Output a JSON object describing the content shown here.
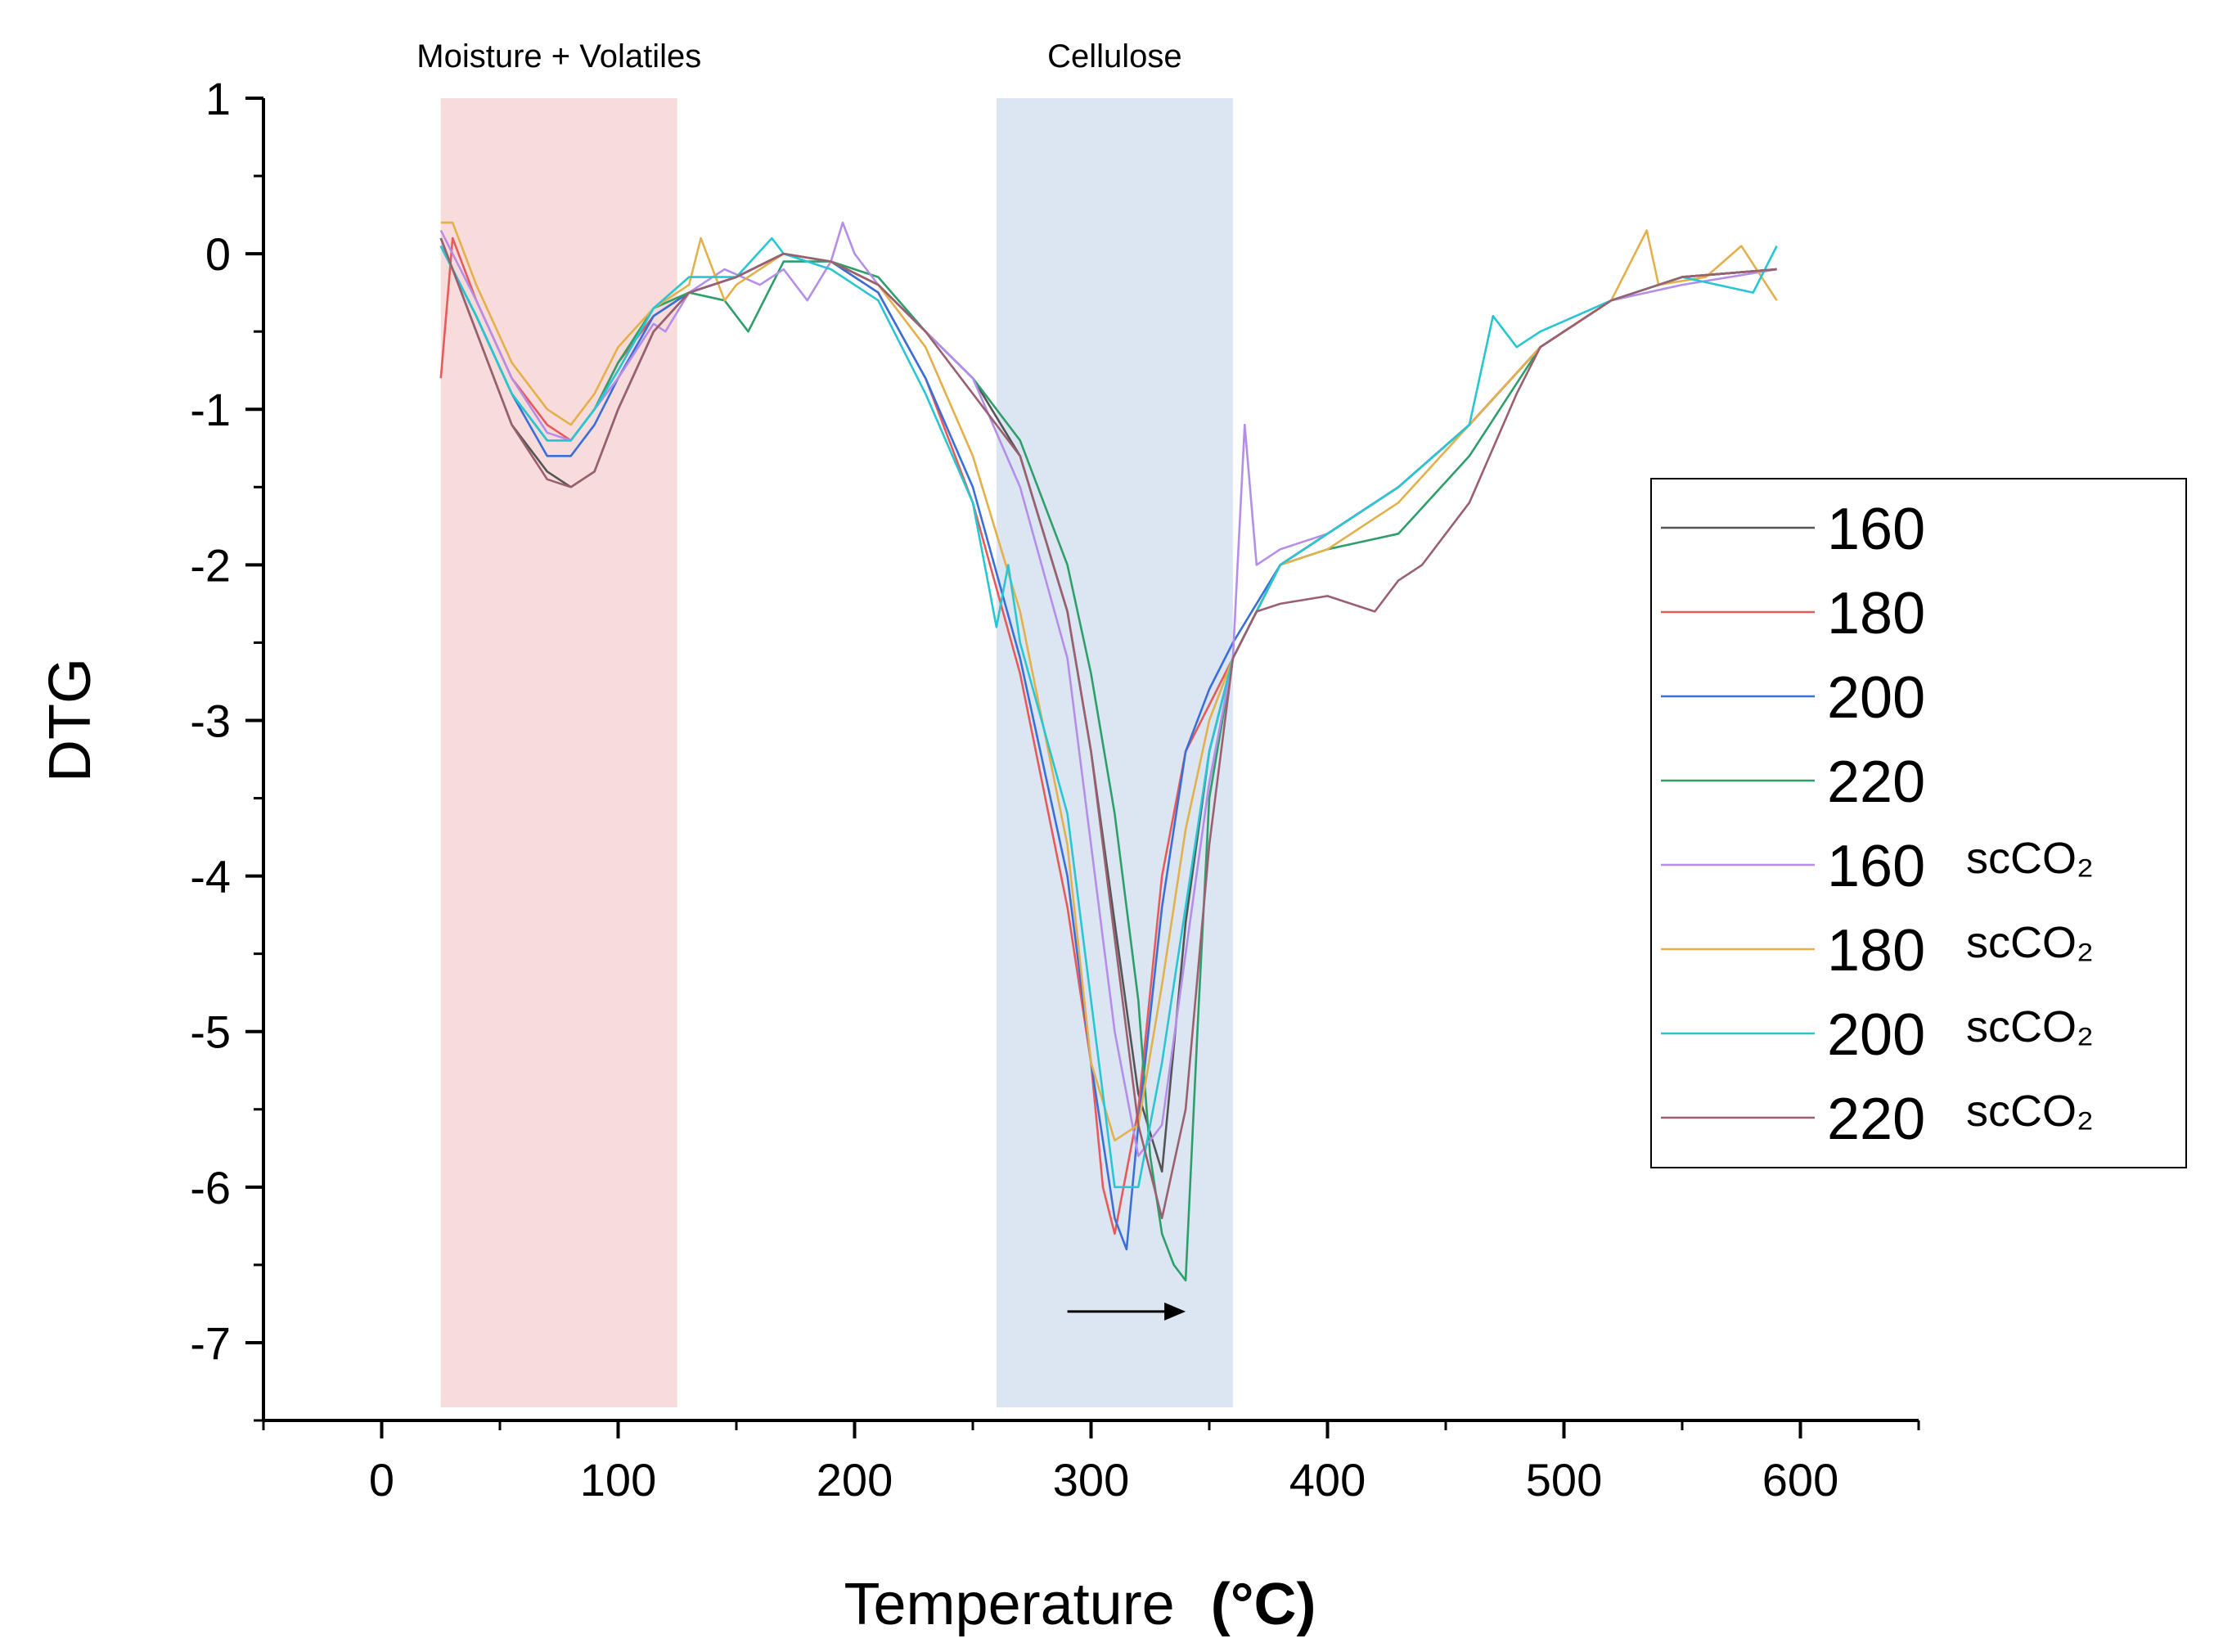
{
  "chart_data": {
    "type": "line",
    "title": "",
    "xlabel": "Temperature",
    "xlabel_unit": "(°C)",
    "ylabel": "DTG",
    "xlim": [
      -50,
      650
    ],
    "ylim": [
      -7.5,
      1
    ],
    "xticks": [
      0,
      100,
      200,
      300,
      400,
      500,
      600
    ],
    "yticks": [
      1,
      0,
      -1,
      -2,
      -3,
      -4,
      -5,
      -6,
      -7
    ],
    "grid": false,
    "legend_position": "right",
    "regions": [
      {
        "label": "Moisture + Volatiles",
        "x0": 25,
        "x1": 125,
        "color": "#f8dcdc"
      },
      {
        "label": "Cellulose",
        "x0": 260,
        "x1": 360,
        "color": "#dce6f2"
      }
    ],
    "annotation": {
      "type": "arrow",
      "from": [
        290,
        -6.8
      ],
      "to": [
        340,
        -6.8
      ],
      "meaning": "peak shift to higher temperature"
    },
    "series": [
      {
        "name": "160",
        "suffix": "",
        "color": "#555555",
        "x": [
          25,
          40,
          55,
          70,
          80,
          90,
          100,
          115,
          130,
          150,
          170,
          190,
          210,
          230,
          250,
          270,
          290,
          300,
          310,
          320,
          330,
          340,
          350,
          360,
          380,
          400,
          430,
          460,
          490,
          520,
          550,
          590
        ],
        "y": [
          0.1,
          -0.5,
          -1.1,
          -1.4,
          -1.5,
          -1.4,
          -1.0,
          -0.5,
          -0.25,
          -0.15,
          0.0,
          -0.05,
          -0.2,
          -0.5,
          -0.8,
          -1.3,
          -2.3,
          -3.2,
          -4.3,
          -5.4,
          -5.9,
          -4.3,
          -3.2,
          -2.6,
          -2.0,
          -1.8,
          -1.5,
          -1.1,
          -0.6,
          -0.3,
          -0.15,
          -0.1
        ]
      },
      {
        "name": "180",
        "suffix": "",
        "color": "#e85a5a",
        "x": [
          25,
          30,
          40,
          55,
          70,
          80,
          90,
          100,
          115,
          130,
          150,
          170,
          190,
          210,
          230,
          250,
          270,
          290,
          300,
          305,
          310,
          320,
          330,
          340,
          350,
          360,
          380,
          400,
          430,
          460,
          490,
          520,
          550,
          590
        ],
        "y": [
          -0.8,
          0.1,
          -0.3,
          -0.8,
          -1.1,
          -1.2,
          -1.0,
          -0.7,
          -0.4,
          -0.25,
          -0.15,
          0.0,
          -0.05,
          -0.25,
          -0.8,
          -1.6,
          -2.7,
          -4.2,
          -5.2,
          -6.0,
          -6.3,
          -5.5,
          -4.0,
          -3.2,
          -2.9,
          -2.6,
          -2.0,
          -1.8,
          -1.5,
          -1.1,
          -0.6,
          -0.3,
          -0.15,
          -0.1
        ]
      },
      {
        "name": "200",
        "suffix": "",
        "color": "#3a6fd8",
        "x": [
          25,
          40,
          55,
          70,
          80,
          90,
          100,
          115,
          130,
          150,
          170,
          190,
          210,
          230,
          250,
          270,
          290,
          300,
          310,
          315,
          320,
          330,
          340,
          350,
          360,
          380,
          400,
          430,
          460,
          490,
          520,
          550,
          590
        ],
        "y": [
          0.05,
          -0.4,
          -0.9,
          -1.3,
          -1.3,
          -1.1,
          -0.8,
          -0.4,
          -0.25,
          -0.15,
          0.0,
          -0.05,
          -0.25,
          -0.8,
          -1.5,
          -2.6,
          -4.0,
          -5.2,
          -6.2,
          -6.4,
          -5.6,
          -4.2,
          -3.2,
          -2.8,
          -2.5,
          -2.0,
          -1.8,
          -1.5,
          -1.1,
          -0.6,
          -0.3,
          -0.15,
          -0.1
        ]
      },
      {
        "name": "220",
        "suffix": "",
        "color": "#2e9e6a",
        "x": [
          25,
          40,
          55,
          70,
          80,
          90,
          100,
          115,
          130,
          145,
          155,
          170,
          190,
          210,
          230,
          250,
          270,
          290,
          300,
          310,
          320,
          325,
          330,
          335,
          340,
          345,
          350,
          360,
          380,
          400,
          430,
          460,
          490,
          520,
          550,
          590
        ],
        "y": [
          0.05,
          -0.4,
          -0.9,
          -1.2,
          -1.2,
          -1.0,
          -0.7,
          -0.35,
          -0.25,
          -0.3,
          -0.5,
          -0.05,
          -0.05,
          -0.15,
          -0.5,
          -0.8,
          -1.2,
          -2.0,
          -2.7,
          -3.6,
          -4.8,
          -5.8,
          -6.3,
          -6.5,
          -6.6,
          -5.0,
          -3.5,
          -2.6,
          -2.0,
          -1.9,
          -1.8,
          -1.3,
          -0.6,
          -0.3,
          -0.15,
          -0.1
        ]
      },
      {
        "name": "160",
        "suffix": "scCO₂",
        "color": "#b48ee8",
        "x": [
          25,
          40,
          55,
          70,
          80,
          90,
          100,
          115,
          120,
          130,
          145,
          160,
          170,
          180,
          190,
          195,
          200,
          210,
          230,
          250,
          270,
          290,
          300,
          310,
          320,
          330,
          340,
          350,
          360,
          365,
          370,
          380,
          400,
          430,
          460,
          490,
          520,
          550,
          590
        ],
        "y": [
          0.15,
          -0.3,
          -0.8,
          -1.15,
          -1.2,
          -1.0,
          -0.8,
          -0.45,
          -0.5,
          -0.25,
          -0.1,
          -0.2,
          -0.1,
          -0.3,
          -0.05,
          0.2,
          0.0,
          -0.2,
          -0.5,
          -0.8,
          -1.5,
          -2.6,
          -3.8,
          -5.0,
          -5.8,
          -5.6,
          -4.5,
          -3.4,
          -2.6,
          -1.1,
          -2.0,
          -1.9,
          -1.8,
          -1.5,
          -1.1,
          -0.6,
          -0.3,
          -0.2,
          -0.1
        ]
      },
      {
        "name": "180",
        "suffix": "scCO₂",
        "color": "#e3b04b",
        "x": [
          25,
          30,
          40,
          55,
          70,
          80,
          90,
          100,
          115,
          130,
          135,
          145,
          150,
          170,
          190,
          210,
          230,
          250,
          270,
          290,
          300,
          310,
          320,
          330,
          340,
          350,
          360,
          380,
          400,
          430,
          460,
          490,
          520,
          535,
          540,
          560,
          575,
          590
        ],
        "y": [
          0.2,
          0.2,
          -0.2,
          -0.7,
          -1.0,
          -1.1,
          -0.9,
          -0.6,
          -0.35,
          -0.2,
          0.1,
          -0.3,
          -0.2,
          0.0,
          -0.05,
          -0.2,
          -0.6,
          -1.3,
          -2.3,
          -3.8,
          -5.2,
          -5.7,
          -5.6,
          -4.7,
          -3.7,
          -3.0,
          -2.6,
          -2.0,
          -1.9,
          -1.6,
          -1.1,
          -0.6,
          -0.3,
          0.15,
          -0.2,
          -0.15,
          0.05,
          -0.3
        ]
      },
      {
        "name": "200",
        "suffix": "scCO₂",
        "color": "#27c6d2",
        "x": [
          25,
          40,
          55,
          70,
          80,
          90,
          100,
          115,
          130,
          150,
          165,
          170,
          190,
          210,
          230,
          250,
          255,
          260,
          265,
          270,
          290,
          300,
          310,
          320,
          330,
          340,
          350,
          360,
          380,
          400,
          430,
          460,
          470,
          480,
          490,
          520,
          550,
          580,
          590
        ],
        "y": [
          0.05,
          -0.4,
          -0.9,
          -1.2,
          -1.2,
          -1.0,
          -0.75,
          -0.35,
          -0.15,
          -0.15,
          0.1,
          0.0,
          -0.1,
          -0.3,
          -0.9,
          -1.6,
          -2.0,
          -2.4,
          -2.0,
          -2.5,
          -3.6,
          -4.8,
          -6.0,
          -6.0,
          -5.2,
          -4.2,
          -3.2,
          -2.6,
          -2.0,
          -1.8,
          -1.5,
          -1.1,
          -0.4,
          -0.6,
          -0.5,
          -0.3,
          -0.15,
          -0.25,
          0.05
        ]
      },
      {
        "name": "220",
        "suffix": "scCO₂",
        "color": "#9a6070",
        "x": [
          25,
          40,
          55,
          70,
          80,
          90,
          100,
          115,
          130,
          150,
          170,
          190,
          210,
          230,
          250,
          270,
          290,
          300,
          310,
          320,
          330,
          340,
          350,
          360,
          370,
          380,
          400,
          420,
          430,
          440,
          460,
          480,
          490,
          520,
          550,
          590
        ],
        "y": [
          0.1,
          -0.5,
          -1.1,
          -1.45,
          -1.5,
          -1.4,
          -1.0,
          -0.5,
          -0.25,
          -0.15,
          0.0,
          -0.05,
          -0.2,
          -0.5,
          -0.9,
          -1.3,
          -2.3,
          -3.2,
          -4.4,
          -5.6,
          -6.2,
          -5.5,
          -3.8,
          -2.6,
          -2.3,
          -2.25,
          -2.2,
          -2.3,
          -2.1,
          -2.0,
          -1.6,
          -0.9,
          -0.6,
          -0.3,
          -0.15,
          -0.1
        ]
      }
    ]
  }
}
